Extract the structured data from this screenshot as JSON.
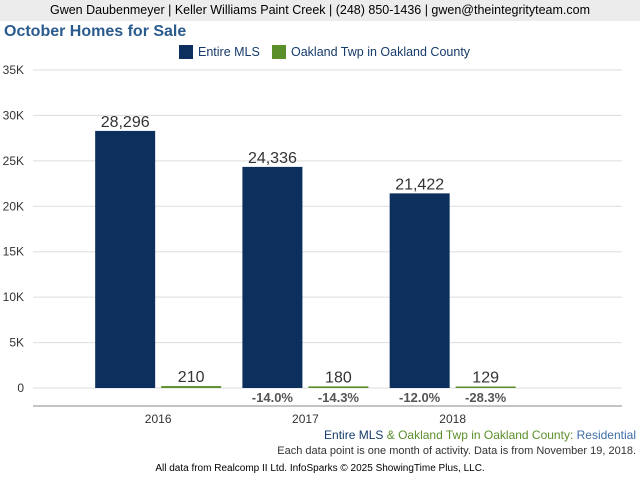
{
  "header": {
    "contact_line": "Gwen Daubenmeyer | Keller Williams Paint Creek | (248) 850-1436 | gwen@theintegrityteam.com"
  },
  "chart_data": {
    "type": "bar",
    "title": "October Homes for Sale",
    "categories": [
      "2016",
      "2017",
      "2018"
    ],
    "series": [
      {
        "name": "Entire MLS",
        "color": "#0d2f5e",
        "values": [
          28296,
          24336,
          21422
        ],
        "value_labels": [
          "28,296",
          "24,336",
          "21,422"
        ],
        "change_labels": [
          "",
          "-14.0%",
          "-12.0%"
        ]
      },
      {
        "name": "Oakland Twp in Oakland County",
        "color": "#5a8f29",
        "values": [
          210,
          180,
          129
        ],
        "value_labels": [
          "210",
          "180",
          "129"
        ],
        "change_labels": [
          "",
          "-14.3%",
          "-28.3%"
        ]
      }
    ],
    "ylim": [
      0,
      35000
    ],
    "y_ticks": [
      0,
      5000,
      10000,
      15000,
      20000,
      25000,
      30000,
      35000
    ],
    "y_tick_labels": [
      "0",
      "5K",
      "10K",
      "15K",
      "20K",
      "25K",
      "30K",
      "35K"
    ],
    "grid": true,
    "legend_position": "top-center"
  },
  "footer": {
    "series_a": "Entire MLS",
    "joiner": " & ",
    "series_b": "Oakland Twp in Oakland County",
    "colon": ": ",
    "property_type": "Residential",
    "note": "Each data point is one month of activity. Data is from November 19, 2018.",
    "credit": "All data from Realcomp II Ltd. InfoSparks © 2025 ShowingTime Plus, LLC."
  },
  "colors": {
    "title": "#2a5b8f",
    "legend_text": "#163b6b",
    "grid": "#dddddd",
    "axis": "#888888",
    "label_text": "#333333",
    "change_text": "#555555",
    "footer_blue": "#163b6b",
    "footer_green": "#5a8f29",
    "footer_type": "#3d6ea8"
  }
}
